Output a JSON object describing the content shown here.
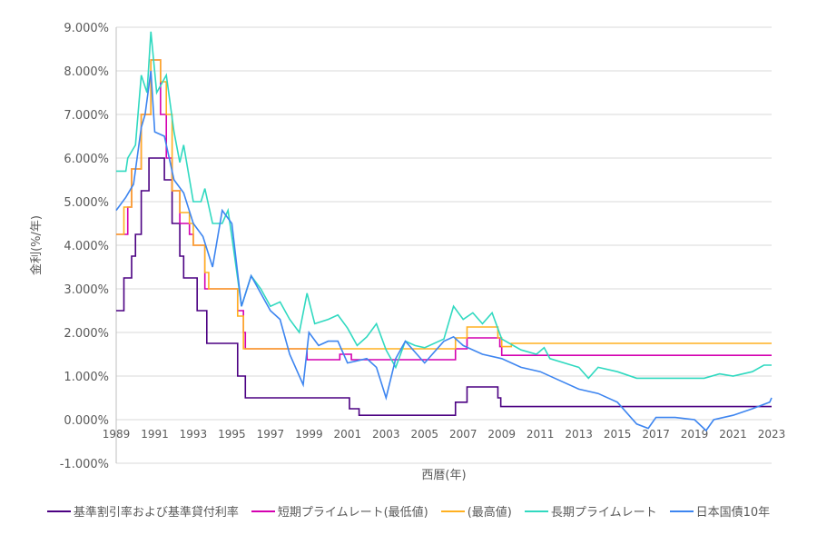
{
  "chart_data": {
    "type": "line",
    "title": "",
    "xlabel": "西暦(年)",
    "ylabel": "金利(%/年)",
    "xlim": [
      1989,
      2023
    ],
    "ylim": [
      -1,
      9
    ],
    "grid": true,
    "legend_position": "bottom",
    "x_ticks": [
      "1989",
      "1991",
      "1993",
      "1995",
      "1997",
      "1999",
      "2001",
      "2003",
      "2005",
      "2007",
      "2009",
      "2011",
      "2013",
      "2015",
      "2017",
      "2019",
      "2021",
      "2023"
    ],
    "y_ticks": [
      "9.000%",
      "8.000%",
      "7.000%",
      "6.000%",
      "5.000%",
      "4.000%",
      "3.000%",
      "2.000%",
      "1.000%",
      "0.000%",
      "-1.000%"
    ],
    "series": [
      {
        "name": "基準割引率および基準貸付利率",
        "color": "#4b0082",
        "step": true,
        "points": [
          [
            1989,
            2.5
          ],
          [
            1989.4,
            3.25
          ],
          [
            1989.8,
            3.75
          ],
          [
            1990.0,
            4.25
          ],
          [
            1990.3,
            5.25
          ],
          [
            1990.7,
            6.0
          ],
          [
            1991.5,
            5.5
          ],
          [
            1991.9,
            4.5
          ],
          [
            1992.3,
            3.75
          ],
          [
            1992.5,
            3.25
          ],
          [
            1993.2,
            2.5
          ],
          [
            1993.7,
            1.75
          ],
          [
            1995.3,
            1.0
          ],
          [
            1995.7,
            0.5
          ],
          [
            2001.1,
            0.25
          ],
          [
            2001.6,
            0.1
          ],
          [
            2006.6,
            0.4
          ],
          [
            2007.2,
            0.75
          ],
          [
            2008.8,
            0.5
          ],
          [
            2008.95,
            0.3
          ],
          [
            2023,
            0.3
          ]
        ]
      },
      {
        "name": "短期プライムレート(最低値)",
        "color": "#d400b0",
        "step": true,
        "points": [
          [
            1989,
            4.25
          ],
          [
            1989.5,
            4.25
          ],
          [
            1989.6,
            4.875
          ],
          [
            1989.8,
            5.75
          ],
          [
            1990.3,
            7.0
          ],
          [
            1990.8,
            8.25
          ],
          [
            1991.3,
            7.0
          ],
          [
            1991.6,
            6.0
          ],
          [
            1991.9,
            5.25
          ],
          [
            1992.3,
            4.5
          ],
          [
            1992.8,
            4.25
          ],
          [
            1993.0,
            4.0
          ],
          [
            1993.6,
            3.0
          ],
          [
            1995.3,
            2.5
          ],
          [
            1995.6,
            2.0
          ],
          [
            1995.7,
            1.625
          ],
          [
            1998.9,
            1.375
          ],
          [
            2000.6,
            1.5
          ],
          [
            2001.2,
            1.375
          ],
          [
            2006.6,
            1.625
          ],
          [
            2007.2,
            1.875
          ],
          [
            2008.9,
            1.675
          ],
          [
            2009.0,
            1.475
          ],
          [
            2023,
            1.475
          ]
        ]
      },
      {
        "name": "(最高値)",
        "color": "#ffb020",
        "step": true,
        "points": [
          [
            1989,
            4.25
          ],
          [
            1989.4,
            4.875
          ],
          [
            1989.8,
            5.75
          ],
          [
            1990.3,
            7.0
          ],
          [
            1990.8,
            8.25
          ],
          [
            1991.3,
            7.75
          ],
          [
            1991.6,
            7.0
          ],
          [
            1991.9,
            5.25
          ],
          [
            1992.3,
            4.75
          ],
          [
            1992.8,
            4.5
          ],
          [
            1993.0,
            4.0
          ],
          [
            1993.6,
            3.375
          ],
          [
            1993.8,
            3.0
          ],
          [
            1995.3,
            2.375
          ],
          [
            1995.6,
            1.625
          ],
          [
            2006.6,
            1.875
          ],
          [
            2007.2,
            2.125
          ],
          [
            2008.8,
            1.875
          ],
          [
            2009.0,
            1.675
          ],
          [
            2009.5,
            1.75
          ],
          [
            2023,
            1.75
          ]
        ]
      },
      {
        "name": "長期プライムレート",
        "color": "#30d9c0",
        "step": false,
        "points": [
          [
            1989,
            5.7
          ],
          [
            1989.5,
            5.7
          ],
          [
            1989.6,
            6.0
          ],
          [
            1990,
            6.3
          ],
          [
            1990.3,
            7.9
          ],
          [
            1990.6,
            7.5
          ],
          [
            1990.8,
            8.9
          ],
          [
            1991.1,
            7.5
          ],
          [
            1991.6,
            7.9
          ],
          [
            1992,
            6.6
          ],
          [
            1992.3,
            5.9
          ],
          [
            1992.5,
            6.3
          ],
          [
            1993,
            5.0
          ],
          [
            1993.4,
            5.0
          ],
          [
            1993.6,
            5.3
          ],
          [
            1994,
            4.5
          ],
          [
            1994.5,
            4.5
          ],
          [
            1994.8,
            4.8
          ],
          [
            1995,
            4.2
          ],
          [
            1995.5,
            2.6
          ],
          [
            1996,
            3.3
          ],
          [
            1996.5,
            3.0
          ],
          [
            1997,
            2.6
          ],
          [
            1997.5,
            2.7
          ],
          [
            1998,
            2.3
          ],
          [
            1998.5,
            2.0
          ],
          [
            1998.9,
            2.9
          ],
          [
            1999.3,
            2.2
          ],
          [
            2000,
            2.3
          ],
          [
            2000.5,
            2.4
          ],
          [
            2001,
            2.1
          ],
          [
            2001.5,
            1.7
          ],
          [
            2002,
            1.9
          ],
          [
            2002.5,
            2.2
          ],
          [
            2003,
            1.6
          ],
          [
            2003.5,
            1.2
          ],
          [
            2004,
            1.8
          ],
          [
            2004.5,
            1.7
          ],
          [
            2005,
            1.65
          ],
          [
            2006,
            1.85
          ],
          [
            2006.5,
            2.6
          ],
          [
            2007,
            2.3
          ],
          [
            2007.5,
            2.45
          ],
          [
            2008,
            2.2
          ],
          [
            2008.5,
            2.45
          ],
          [
            2009,
            1.85
          ],
          [
            2010,
            1.6
          ],
          [
            2010.8,
            1.5
          ],
          [
            2011.2,
            1.65
          ],
          [
            2011.5,
            1.4
          ],
          [
            2013,
            1.2
          ],
          [
            2013.5,
            0.95
          ],
          [
            2014,
            1.2
          ],
          [
            2015,
            1.1
          ],
          [
            2016,
            0.95
          ],
          [
            2017,
            0.95
          ],
          [
            2019.5,
            0.95
          ],
          [
            2020.3,
            1.05
          ],
          [
            2021,
            1.0
          ],
          [
            2022,
            1.1
          ],
          [
            2022.6,
            1.25
          ],
          [
            2023,
            1.25
          ]
        ]
      },
      {
        "name": "日本国債10年",
        "color": "#3d85f0",
        "step": false,
        "points": [
          [
            1989,
            4.8
          ],
          [
            1989.5,
            5.1
          ],
          [
            1989.9,
            5.4
          ],
          [
            1990.3,
            6.7
          ],
          [
            1990.5,
            7.0
          ],
          [
            1990.8,
            8.0
          ],
          [
            1991,
            6.6
          ],
          [
            1991.5,
            6.5
          ],
          [
            1992,
            5.5
          ],
          [
            1992.5,
            5.2
          ],
          [
            1993,
            4.5
          ],
          [
            1993.5,
            4.2
          ],
          [
            1994,
            3.5
          ],
          [
            1994.5,
            4.8
          ],
          [
            1995,
            4.5
          ],
          [
            1995.5,
            2.6
          ],
          [
            1996,
            3.3
          ],
          [
            1997,
            2.5
          ],
          [
            1997.5,
            2.3
          ],
          [
            1998,
            1.5
          ],
          [
            1998.7,
            0.8
          ],
          [
            1999,
            2.0
          ],
          [
            1999.5,
            1.7
          ],
          [
            2000,
            1.8
          ],
          [
            2000.5,
            1.8
          ],
          [
            2001,
            1.3
          ],
          [
            2002,
            1.4
          ],
          [
            2002.5,
            1.2
          ],
          [
            2003,
            0.5
          ],
          [
            2003.5,
            1.4
          ],
          [
            2004,
            1.8
          ],
          [
            2005,
            1.3
          ],
          [
            2006,
            1.8
          ],
          [
            2006.5,
            1.9
          ],
          [
            2007,
            1.7
          ],
          [
            2008,
            1.5
          ],
          [
            2009,
            1.4
          ],
          [
            2010,
            1.2
          ],
          [
            2011,
            1.1
          ],
          [
            2012,
            0.9
          ],
          [
            2013,
            0.7
          ],
          [
            2014,
            0.6
          ],
          [
            2015,
            0.4
          ],
          [
            2016,
            -0.1
          ],
          [
            2016.6,
            -0.2
          ],
          [
            2017,
            0.05
          ],
          [
            2018,
            0.05
          ],
          [
            2019,
            0.0
          ],
          [
            2019.6,
            -0.25
          ],
          [
            2020,
            0.0
          ],
          [
            2021,
            0.1
          ],
          [
            2022,
            0.25
          ],
          [
            2022.9,
            0.4
          ],
          [
            2023,
            0.5
          ]
        ]
      }
    ]
  }
}
